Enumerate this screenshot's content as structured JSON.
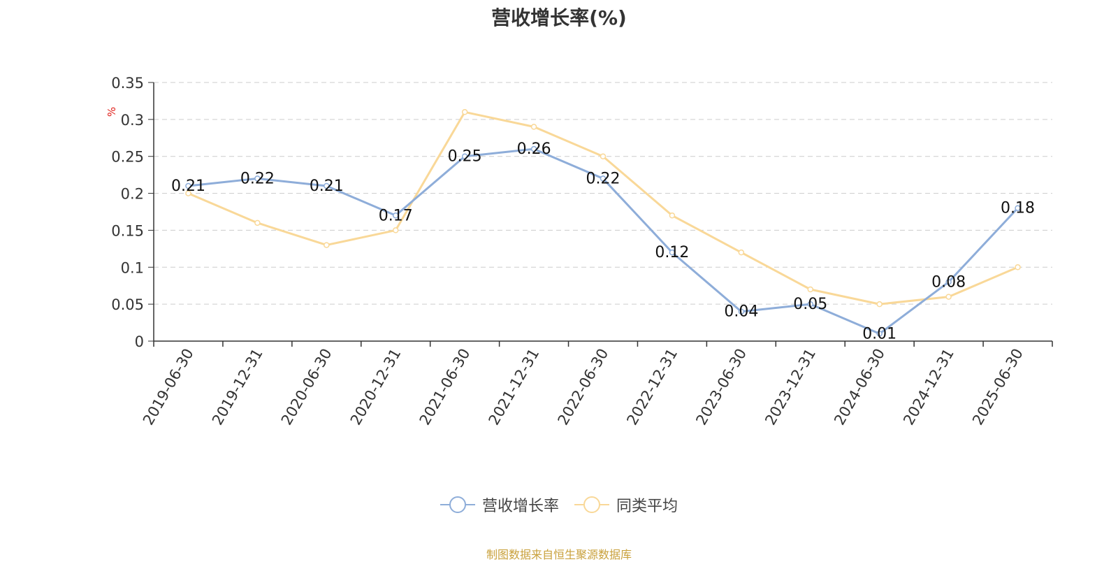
{
  "title": "营收增长率(%)",
  "source": "制图数据来自恒生聚源数据库",
  "chart_data": {
    "type": "line",
    "title": "营收增长率(%)",
    "ylabel": "%",
    "ylim": [
      0,
      0.35
    ],
    "yticks": [
      "0",
      "0.05",
      "0.1",
      "0.15",
      "0.2",
      "0.25",
      "0.3",
      "0.35"
    ],
    "grid": true,
    "legend_position": "bottom",
    "categories": [
      "2019-06-30",
      "2019-12-31",
      "2020-06-30",
      "2020-12-31",
      "2021-06-30",
      "2021-12-31",
      "2022-06-30",
      "2022-12-31",
      "2023-06-30",
      "2023-12-31",
      "2024-06-30",
      "2024-12-31",
      "2025-06-30"
    ],
    "series": [
      {
        "name": "营收增长率",
        "color": "#8eadd9",
        "show_labels": true,
        "values": [
          0.21,
          0.22,
          0.21,
          0.17,
          0.25,
          0.26,
          0.22,
          0.12,
          0.04,
          0.05,
          0.01,
          0.08,
          0.18
        ],
        "labels": [
          "0.21",
          "0.22",
          "0.21",
          "0.17",
          "0.25",
          "0.26",
          "0.22",
          "0.12",
          "0.04",
          "0.05",
          "0.01",
          "0.08",
          "0.18"
        ]
      },
      {
        "name": "同类平均",
        "color": "#f9d898",
        "show_labels": false,
        "values": [
          0.2,
          0.16,
          0.13,
          0.15,
          0.31,
          0.29,
          0.25,
          0.17,
          0.12,
          0.07,
          0.05,
          0.06,
          0.1
        ]
      }
    ]
  }
}
